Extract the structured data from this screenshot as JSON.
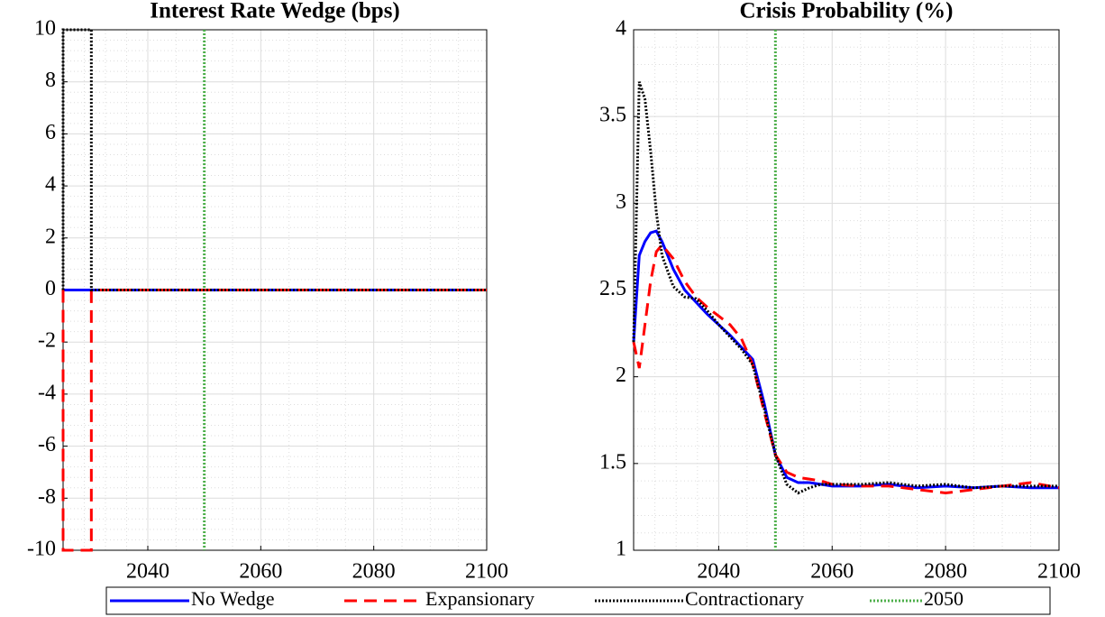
{
  "chart_data": [
    {
      "type": "line",
      "title": "Interest Rate Wedge (bps)",
      "x": [
        2025,
        2025,
        2030,
        2030,
        2050,
        2100
      ],
      "series": [
        {
          "name": "No Wedge",
          "color": "#0000ff",
          "dash": "solid",
          "values": [
            0,
            0,
            0,
            0,
            0,
            0
          ]
        },
        {
          "name": "Expansionary",
          "color": "#ff0000",
          "dash": "dashed",
          "values": [
            0,
            -10,
            -10,
            0,
            0,
            0
          ]
        },
        {
          "name": "Contractionary",
          "color": "#000000",
          "dash": "dotted",
          "values": [
            0,
            10,
            10,
            0,
            0,
            0
          ]
        }
      ],
      "vline": {
        "name": "2050",
        "x": 2050,
        "color": "#4daf4a",
        "dash": "dotted"
      },
      "xlim": [
        2025,
        2100
      ],
      "xticks": [
        2040,
        2060,
        2080,
        2100
      ],
      "ylim": [
        -10,
        10
      ],
      "yticks": [
        -10,
        -8,
        -6,
        -4,
        -2,
        0,
        2,
        4,
        6,
        8,
        10
      ],
      "grid": true
    },
    {
      "type": "line",
      "title": "Crisis Probability (%)",
      "x": [
        2025,
        2026,
        2027,
        2028,
        2029,
        2030,
        2032,
        2034,
        2036,
        2038,
        2040,
        2042,
        2044,
        2046,
        2048,
        2050,
        2052,
        2054,
        2056,
        2058,
        2060,
        2065,
        2070,
        2075,
        2080,
        2085,
        2090,
        2095,
        2100
      ],
      "series": [
        {
          "name": "No Wedge",
          "color": "#0000ff",
          "dash": "solid",
          "values": [
            2.2,
            2.7,
            2.78,
            2.83,
            2.84,
            2.78,
            2.62,
            2.5,
            2.43,
            2.36,
            2.3,
            2.24,
            2.17,
            2.1,
            1.85,
            1.55,
            1.42,
            1.39,
            1.39,
            1.38,
            1.37,
            1.37,
            1.38,
            1.36,
            1.37,
            1.36,
            1.37,
            1.36,
            1.36
          ]
        },
        {
          "name": "Expansionary",
          "color": "#ff0000",
          "dash": "dashed",
          "values": [
            2.2,
            2.05,
            2.3,
            2.55,
            2.72,
            2.76,
            2.68,
            2.55,
            2.46,
            2.4,
            2.35,
            2.3,
            2.22,
            2.07,
            1.8,
            1.55,
            1.45,
            1.42,
            1.41,
            1.4,
            1.38,
            1.37,
            1.37,
            1.35,
            1.33,
            1.35,
            1.37,
            1.39,
            1.36
          ]
        },
        {
          "name": "Contractionary",
          "color": "#000000",
          "dash": "dotted",
          "values": [
            2.2,
            3.7,
            3.6,
            3.3,
            2.95,
            2.7,
            2.52,
            2.46,
            2.45,
            2.38,
            2.3,
            2.23,
            2.16,
            2.07,
            1.82,
            1.55,
            1.38,
            1.33,
            1.36,
            1.38,
            1.38,
            1.38,
            1.39,
            1.37,
            1.38,
            1.36,
            1.37,
            1.37,
            1.37
          ]
        }
      ],
      "vline": {
        "name": "2050",
        "x": 2050,
        "color": "#4daf4a",
        "dash": "dotted"
      },
      "xlim": [
        2025,
        2100
      ],
      "xticks": [
        2040,
        2060,
        2080,
        2100
      ],
      "ylim": [
        1,
        4
      ],
      "yticks": [
        1,
        1.5,
        2,
        2.5,
        3,
        3.5,
        4
      ],
      "grid": true
    }
  ]
}
